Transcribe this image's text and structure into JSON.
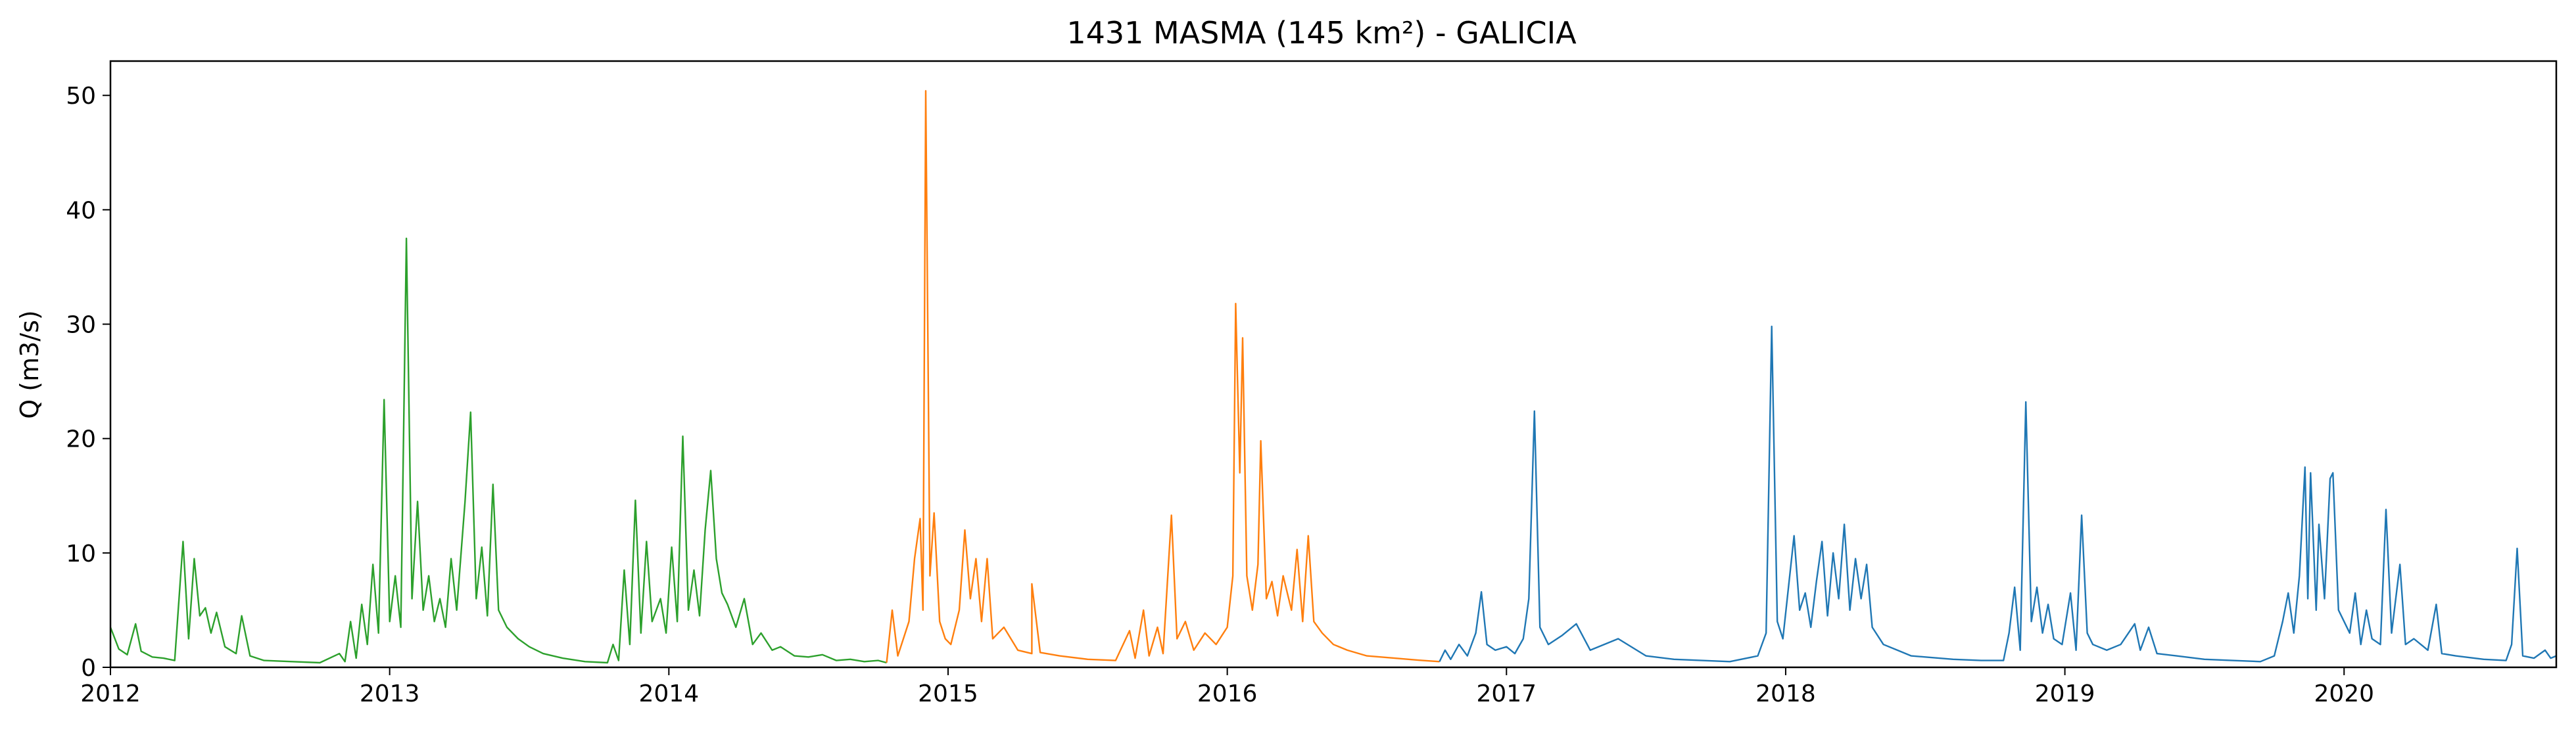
{
  "chart_data": {
    "type": "line",
    "title": "1431 MASMA (145 km²) - GALICIA",
    "xlabel": "",
    "ylabel": "Q (m3/s)",
    "xlim": [
      2012.0,
      2020.76
    ],
    "ylim": [
      0,
      53
    ],
    "x_ticks": [
      "2012",
      "2013",
      "2014",
      "2015",
      "2016",
      "2017",
      "2018",
      "2019",
      "2020"
    ],
    "y_ticks": [
      "0",
      "10",
      "20",
      "30",
      "40",
      "50"
    ],
    "grid": false,
    "legend": "none",
    "colors": [
      "#2ca02c",
      "#ff7f0e",
      "#1f77b4"
    ],
    "series": [
      {
        "color": "#2ca02c",
        "points": [
          [
            2012.0,
            3.5
          ],
          [
            2012.03,
            1.6
          ],
          [
            2012.06,
            1.1
          ],
          [
            2012.09,
            3.8
          ],
          [
            2012.11,
            1.4
          ],
          [
            2012.15,
            0.9
          ],
          [
            2012.19,
            0.8
          ],
          [
            2012.23,
            0.6
          ],
          [
            2012.26,
            11.0
          ],
          [
            2012.28,
            2.5
          ],
          [
            2012.3,
            9.5
          ],
          [
            2012.32,
            4.5
          ],
          [
            2012.34,
            5.2
          ],
          [
            2012.36,
            3.0
          ],
          [
            2012.38,
            4.8
          ],
          [
            2012.41,
            1.8
          ],
          [
            2012.45,
            1.2
          ],
          [
            2012.47,
            4.5
          ],
          [
            2012.5,
            1.0
          ],
          [
            2012.55,
            0.6
          ],
          [
            2012.65,
            0.5
          ],
          [
            2012.75,
            0.4
          ],
          [
            2012.82,
            1.2
          ],
          [
            2012.84,
            0.5
          ],
          [
            2012.86,
            4.0
          ],
          [
            2012.88,
            0.8
          ],
          [
            2012.9,
            5.5
          ],
          [
            2012.92,
            2.0
          ],
          [
            2012.94,
            9.0
          ],
          [
            2012.96,
            3.0
          ],
          [
            2012.98,
            23.4
          ],
          [
            2013.0,
            4.0
          ],
          [
            2013.02,
            8.0
          ],
          [
            2013.04,
            3.5
          ],
          [
            2013.06,
            37.5
          ],
          [
            2013.08,
            6.0
          ],
          [
            2013.1,
            14.5
          ],
          [
            2013.12,
            5.0
          ],
          [
            2013.14,
            8.0
          ],
          [
            2013.16,
            4.0
          ],
          [
            2013.18,
            6.0
          ],
          [
            2013.2,
            3.5
          ],
          [
            2013.22,
            9.5
          ],
          [
            2013.24,
            5.0
          ],
          [
            2013.27,
            14.5
          ],
          [
            2013.29,
            22.3
          ],
          [
            2013.31,
            6.0
          ],
          [
            2013.33,
            10.5
          ],
          [
            2013.35,
            4.5
          ],
          [
            2013.37,
            16.0
          ],
          [
            2013.39,
            5.0
          ],
          [
            2013.42,
            3.5
          ],
          [
            2013.46,
            2.5
          ],
          [
            2013.5,
            1.8
          ],
          [
            2013.55,
            1.2
          ],
          [
            2013.62,
            0.8
          ],
          [
            2013.7,
            0.5
          ],
          [
            2013.78,
            0.4
          ],
          [
            2013.8,
            2.0
          ],
          [
            2013.82,
            0.6
          ],
          [
            2013.84,
            8.5
          ],
          [
            2013.86,
            2.0
          ],
          [
            2013.88,
            14.6
          ],
          [
            2013.9,
            3.0
          ],
          [
            2013.92,
            11.0
          ],
          [
            2013.94,
            4.0
          ],
          [
            2013.97,
            6.0
          ],
          [
            2013.99,
            3.0
          ],
          [
            2014.01,
            10.5
          ],
          [
            2014.03,
            4.0
          ],
          [
            2014.05,
            20.2
          ],
          [
            2014.07,
            5.0
          ],
          [
            2014.09,
            8.5
          ],
          [
            2014.11,
            4.5
          ],
          [
            2014.13,
            12.0
          ],
          [
            2014.15,
            17.2
          ],
          [
            2014.17,
            9.5
          ],
          [
            2014.19,
            6.5
          ],
          [
            2014.21,
            5.5
          ],
          [
            2014.24,
            3.5
          ],
          [
            2014.27,
            6.0
          ],
          [
            2014.3,
            2.0
          ],
          [
            2014.33,
            3.0
          ],
          [
            2014.37,
            1.5
          ],
          [
            2014.4,
            1.8
          ],
          [
            2014.45,
            1.0
          ],
          [
            2014.5,
            0.9
          ],
          [
            2014.55,
            1.1
          ],
          [
            2014.6,
            0.6
          ],
          [
            2014.65,
            0.7
          ],
          [
            2014.7,
            0.5
          ],
          [
            2014.75,
            0.6
          ],
          [
            2014.78,
            0.4
          ]
        ]
      },
      {
        "color": "#ff7f0e",
        "points": [
          [
            2014.78,
            0.4
          ],
          [
            2014.8,
            5.0
          ],
          [
            2014.82,
            1.0
          ],
          [
            2014.84,
            2.5
          ],
          [
            2014.86,
            4.0
          ],
          [
            2014.88,
            9.5
          ],
          [
            2014.9,
            13.0
          ],
          [
            2014.91,
            5.0
          ],
          [
            2014.92,
            50.4
          ],
          [
            2014.935,
            8.0
          ],
          [
            2014.95,
            13.5
          ],
          [
            2014.97,
            4.0
          ],
          [
            2014.99,
            2.5
          ],
          [
            2015.01,
            2.0
          ],
          [
            2015.04,
            5.0
          ],
          [
            2015.06,
            12.0
          ],
          [
            2015.08,
            6.0
          ],
          [
            2015.1,
            9.5
          ],
          [
            2015.12,
            4.0
          ],
          [
            2015.14,
            9.5
          ],
          [
            2015.16,
            2.5
          ],
          [
            2015.2,
            3.5
          ],
          [
            2015.25,
            1.5
          ],
          [
            2015.3,
            1.2
          ],
          [
            2015.3,
            7.3
          ],
          [
            2015.33,
            1.3
          ],
          [
            2015.4,
            1.0
          ],
          [
            2015.5,
            0.7
          ],
          [
            2015.6,
            0.6
          ],
          [
            2015.65,
            3.2
          ],
          [
            2015.67,
            0.8
          ],
          [
            2015.7,
            5.0
          ],
          [
            2015.72,
            1.0
          ],
          [
            2015.75,
            3.5
          ],
          [
            2015.77,
            1.2
          ],
          [
            2015.8,
            13.3
          ],
          [
            2015.82,
            2.5
          ],
          [
            2015.85,
            4.0
          ],
          [
            2015.88,
            1.5
          ],
          [
            2015.92,
            3.0
          ],
          [
            2015.96,
            2.0
          ],
          [
            2016.0,
            3.5
          ],
          [
            2016.02,
            8.0
          ],
          [
            2016.03,
            31.8
          ],
          [
            2016.045,
            17.0
          ],
          [
            2016.055,
            28.8
          ],
          [
            2016.07,
            8.0
          ],
          [
            2016.09,
            5.0
          ],
          [
            2016.11,
            9.0
          ],
          [
            2016.12,
            19.8
          ],
          [
            2016.14,
            6.0
          ],
          [
            2016.16,
            7.5
          ],
          [
            2016.18,
            4.5
          ],
          [
            2016.2,
            8.0
          ],
          [
            2016.23,
            5.0
          ],
          [
            2016.25,
            10.3
          ],
          [
            2016.27,
            4.0
          ],
          [
            2016.29,
            11.5
          ],
          [
            2016.31,
            4.0
          ],
          [
            2016.34,
            3.0
          ],
          [
            2016.38,
            2.0
          ],
          [
            2016.43,
            1.5
          ],
          [
            2016.5,
            1.0
          ],
          [
            2016.6,
            0.8
          ],
          [
            2016.7,
            0.6
          ],
          [
            2016.76,
            0.5
          ]
        ]
      },
      {
        "color": "#1f77b4",
        "points": [
          [
            2016.76,
            0.5
          ],
          [
            2016.78,
            1.5
          ],
          [
            2016.8,
            0.7
          ],
          [
            2016.83,
            2.0
          ],
          [
            2016.86,
            1.0
          ],
          [
            2016.89,
            3.0
          ],
          [
            2016.91,
            6.6
          ],
          [
            2016.93,
            2.0
          ],
          [
            2016.96,
            1.5
          ],
          [
            2017.0,
            1.8
          ],
          [
            2017.03,
            1.2
          ],
          [
            2017.06,
            2.5
          ],
          [
            2017.08,
            6.0
          ],
          [
            2017.1,
            22.4
          ],
          [
            2017.12,
            3.5
          ],
          [
            2017.15,
            2.0
          ],
          [
            2017.2,
            2.8
          ],
          [
            2017.25,
            3.8
          ],
          [
            2017.3,
            1.5
          ],
          [
            2017.4,
            2.5
          ],
          [
            2017.5,
            1.0
          ],
          [
            2017.6,
            0.7
          ],
          [
            2017.7,
            0.6
          ],
          [
            2017.8,
            0.5
          ],
          [
            2017.9,
            1.0
          ],
          [
            2017.93,
            3.0
          ],
          [
            2017.95,
            29.8
          ],
          [
            2017.97,
            4.0
          ],
          [
            2017.99,
            2.5
          ],
          [
            2018.01,
            7.0
          ],
          [
            2018.03,
            11.5
          ],
          [
            2018.05,
            5.0
          ],
          [
            2018.07,
            6.5
          ],
          [
            2018.09,
            3.5
          ],
          [
            2018.11,
            7.5
          ],
          [
            2018.13,
            11.0
          ],
          [
            2018.15,
            4.5
          ],
          [
            2018.17,
            10.0
          ],
          [
            2018.19,
            6.0
          ],
          [
            2018.21,
            12.5
          ],
          [
            2018.23,
            5.0
          ],
          [
            2018.25,
            9.5
          ],
          [
            2018.27,
            6.0
          ],
          [
            2018.29,
            9.0
          ],
          [
            2018.31,
            3.5
          ],
          [
            2018.35,
            2.0
          ],
          [
            2018.4,
            1.5
          ],
          [
            2018.45,
            1.0
          ],
          [
            2018.5,
            0.9
          ],
          [
            2018.6,
            0.7
          ],
          [
            2018.7,
            0.6
          ],
          [
            2018.78,
            0.6
          ],
          [
            2018.8,
            3.0
          ],
          [
            2018.82,
            7.0
          ],
          [
            2018.84,
            1.5
          ],
          [
            2018.86,
            23.2
          ],
          [
            2018.88,
            4.0
          ],
          [
            2018.9,
            7.0
          ],
          [
            2018.92,
            3.0
          ],
          [
            2018.94,
            5.5
          ],
          [
            2018.96,
            2.5
          ],
          [
            2018.99,
            2.0
          ],
          [
            2019.02,
            6.5
          ],
          [
            2019.04,
            1.5
          ],
          [
            2019.06,
            13.3
          ],
          [
            2019.08,
            3.0
          ],
          [
            2019.1,
            2.0
          ],
          [
            2019.15,
            1.5
          ],
          [
            2019.2,
            2.0
          ],
          [
            2019.25,
            3.8
          ],
          [
            2019.27,
            1.5
          ],
          [
            2019.3,
            3.5
          ],
          [
            2019.33,
            1.2
          ],
          [
            2019.4,
            1.0
          ],
          [
            2019.5,
            0.7
          ],
          [
            2019.6,
            0.6
          ],
          [
            2019.7,
            0.5
          ],
          [
            2019.75,
            1.0
          ],
          [
            2019.78,
            4.0
          ],
          [
            2019.8,
            6.5
          ],
          [
            2019.82,
            3.0
          ],
          [
            2019.84,
            8.0
          ],
          [
            2019.86,
            17.5
          ],
          [
            2019.87,
            6.0
          ],
          [
            2019.88,
            17.0
          ],
          [
            2019.9,
            5.0
          ],
          [
            2019.91,
            12.5
          ],
          [
            2019.93,
            6.0
          ],
          [
            2019.95,
            16.5
          ],
          [
            2019.96,
            17.0
          ],
          [
            2019.98,
            5.0
          ],
          [
            2020.0,
            4.0
          ],
          [
            2020.02,
            3.0
          ],
          [
            2020.04,
            6.5
          ],
          [
            2020.06,
            2.0
          ],
          [
            2020.08,
            5.0
          ],
          [
            2020.1,
            2.5
          ],
          [
            2020.13,
            2.0
          ],
          [
            2020.15,
            13.8
          ],
          [
            2020.17,
            3.0
          ],
          [
            2020.2,
            9.0
          ],
          [
            2020.22,
            2.0
          ],
          [
            2020.25,
            2.5
          ],
          [
            2020.3,
            1.5
          ],
          [
            2020.33,
            5.5
          ],
          [
            2020.35,
            1.2
          ],
          [
            2020.4,
            1.0
          ],
          [
            2020.5,
            0.7
          ],
          [
            2020.58,
            0.6
          ],
          [
            2020.6,
            2.0
          ],
          [
            2020.62,
            10.4
          ],
          [
            2020.64,
            1.0
          ],
          [
            2020.68,
            0.8
          ],
          [
            2020.72,
            1.5
          ],
          [
            2020.74,
            0.8
          ],
          [
            2020.76,
            1.0
          ]
        ]
      }
    ]
  }
}
